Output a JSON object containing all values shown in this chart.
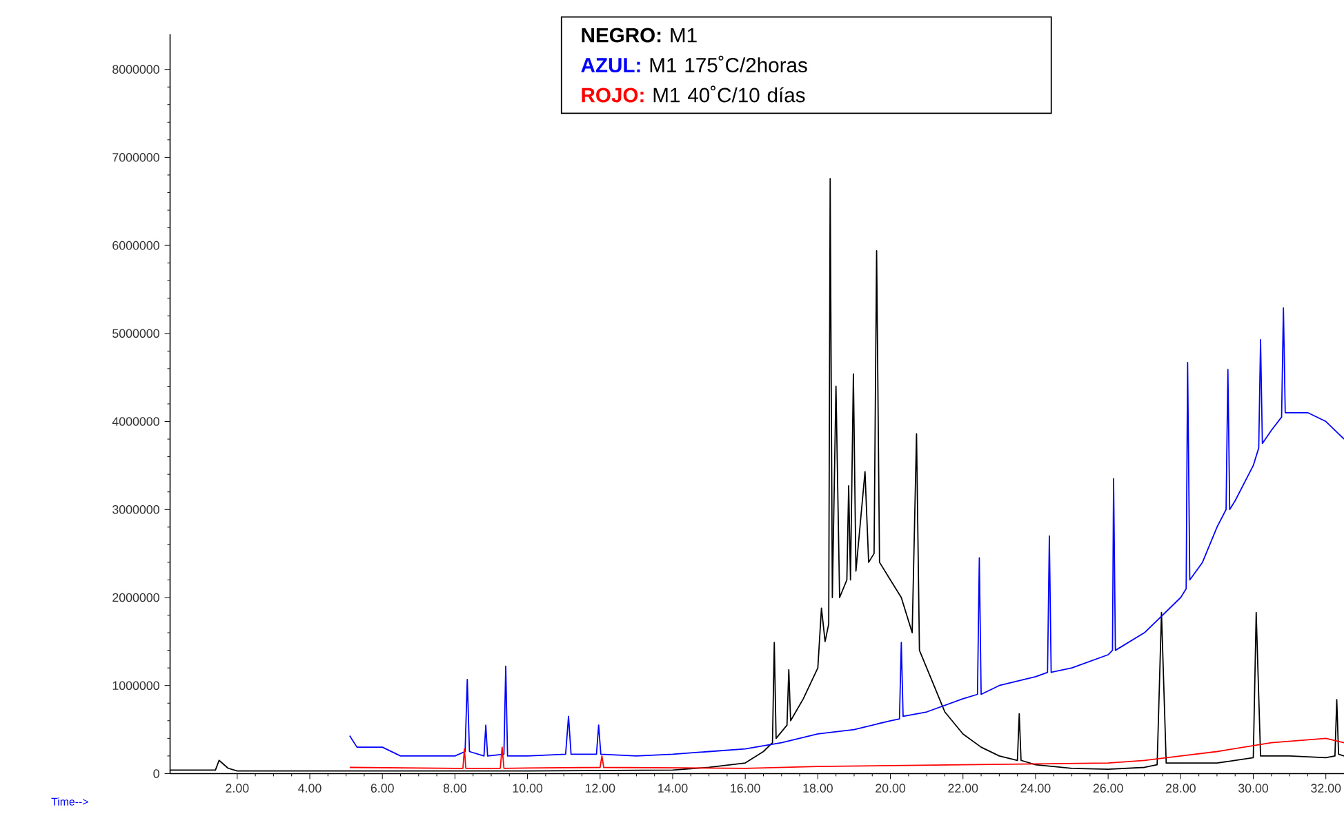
{
  "chart_data": {
    "type": "line",
    "xlabel": "Time-->",
    "xlim": [
      0.15,
      32.5
    ],
    "ylim": [
      0,
      8400000
    ],
    "xticks": [
      {
        "value": 2,
        "label": "2.00"
      },
      {
        "value": 4,
        "label": "4.00"
      },
      {
        "value": 6,
        "label": "6.00"
      },
      {
        "value": 8,
        "label": "8.00"
      },
      {
        "value": 10,
        "label": "10.00"
      },
      {
        "value": 12,
        "label": "12.00"
      },
      {
        "value": 14,
        "label": "14.00"
      },
      {
        "value": 16,
        "label": "16.00"
      },
      {
        "value": 18,
        "label": "18.00"
      },
      {
        "value": 20,
        "label": "20.00"
      },
      {
        "value": 22,
        "label": "22.00"
      },
      {
        "value": 24,
        "label": "24.00"
      },
      {
        "value": 26,
        "label": "26.00"
      },
      {
        "value": 28,
        "label": "28.00"
      },
      {
        "value": 30,
        "label": "30.00"
      },
      {
        "value": 32,
        "label": "32.00"
      }
    ],
    "yticks": [
      0,
      1000000,
      2000000,
      3000000,
      4000000,
      5000000,
      6000000,
      7000000,
      8000000
    ],
    "legend": "top",
    "annotations": [
      "M1",
      "M1 175˚C/2horas",
      "M1 40˚C/10 días"
    ],
    "series": [
      {
        "name": "NEGRO:",
        "color": "#000000",
        "x": [
          0.15,
          1.4,
          1.5,
          1.75,
          2,
          5,
          10,
          14,
          15,
          16,
          16.5,
          16.75,
          16.8,
          16.85,
          17.15,
          17.2,
          17.25,
          17.6,
          18.0,
          18.1,
          18.2,
          18.3,
          18.34,
          18.4,
          18.5,
          18.6,
          18.8,
          18.85,
          18.9,
          18.98,
          19.05,
          19.3,
          19.4,
          19.55,
          19.62,
          19.7,
          20.0,
          20.3,
          20.6,
          20.72,
          20.8,
          21.2,
          21.5,
          22,
          22.5,
          23,
          23.5,
          23.55,
          23.6,
          24,
          25,
          26,
          27,
          27.35,
          27.47,
          27.6,
          28,
          29,
          30,
          30.08,
          30.2,
          31,
          32,
          32.25,
          32.3,
          32.35,
          32.5
        ],
        "values": [
          40000,
          40000,
          150000,
          60000,
          30000,
          30000,
          30000,
          40000,
          70000,
          120000,
          250000,
          350000,
          1490000,
          400000,
          550000,
          1180000,
          600000,
          850000,
          1200000,
          1880000,
          1500000,
          1700000,
          6760000,
          2000000,
          4400000,
          2000000,
          2200000,
          3270000,
          2200000,
          4540000,
          2300000,
          3430000,
          2400000,
          2500000,
          5940000,
          2400000,
          2200000,
          2000000,
          1600000,
          3860000,
          1400000,
          1000000,
          700000,
          450000,
          300000,
          200000,
          150000,
          680000,
          150000,
          100000,
          60000,
          50000,
          70000,
          100000,
          1830000,
          120000,
          120000,
          120000,
          180000,
          1830000,
          200000,
          200000,
          180000,
          200000,
          840000,
          220000,
          200000
        ]
      },
      {
        "name": "AZUL:",
        "color": "#0000ff",
        "x": [
          5.1,
          5.3,
          6,
          6.5,
          8,
          8.28,
          8.34,
          8.4,
          8.8,
          8.85,
          8.9,
          9.35,
          9.4,
          9.45,
          10,
          11.05,
          11.13,
          11.2,
          11.9,
          11.96,
          12.02,
          13,
          14,
          15,
          16,
          17,
          18,
          19,
          20,
          20.25,
          20.3,
          20.35,
          21,
          22,
          22.4,
          22.45,
          22.5,
          23,
          24,
          24.33,
          24.38,
          24.43,
          25,
          26,
          26.12,
          26.15,
          26.2,
          27,
          28,
          28.15,
          28.19,
          28.25,
          28.6,
          29,
          29.25,
          29.3,
          29.35,
          29.5,
          30,
          30.15,
          30.2,
          30.25,
          30.5,
          30.78,
          30.83,
          30.88,
          31.5,
          32,
          32.5
        ],
        "values": [
          430000,
          300000,
          300000,
          200000,
          200000,
          250000,
          1070000,
          250000,
          200000,
          550000,
          200000,
          220000,
          1220000,
          200000,
          200000,
          220000,
          650000,
          220000,
          220000,
          550000,
          220000,
          200000,
          220000,
          250000,
          280000,
          350000,
          450000,
          500000,
          600000,
          620000,
          1490000,
          650000,
          700000,
          850000,
          900000,
          2450000,
          900000,
          1000000,
          1100000,
          1150000,
          2700000,
          1150000,
          1200000,
          1350000,
          1400000,
          3350000,
          1400000,
          1600000,
          2000000,
          2100000,
          4670000,
          2200000,
          2400000,
          2800000,
          3000000,
          4590000,
          3000000,
          3100000,
          3500000,
          3700000,
          4930000,
          3750000,
          3900000,
          4050000,
          5290000,
          4100000,
          4100000,
          4000000,
          3800000
        ]
      },
      {
        "name": "ROJO:",
        "color": "#ff0000",
        "x": [
          5.1,
          8,
          8.22,
          8.26,
          8.3,
          9.25,
          9.3,
          9.35,
          12,
          12.05,
          12.1,
          16,
          18,
          22,
          26,
          27,
          28,
          29,
          30.5,
          32,
          32.5
        ],
        "values": [
          70000,
          60000,
          60000,
          280000,
          60000,
          60000,
          300000,
          60000,
          70000,
          200000,
          70000,
          60000,
          80000,
          100000,
          120000,
          150000,
          200000,
          250000,
          350000,
          400000,
          350000
        ]
      }
    ]
  }
}
